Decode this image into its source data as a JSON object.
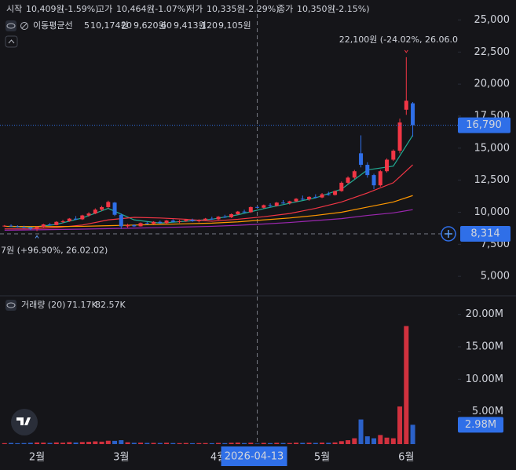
{
  "header": {
    "ohlc": [
      {
        "label": "시작",
        "value": "10,409원",
        "change": "(-1.59%)"
      },
      {
        "label": "고가",
        "value": "10,464원",
        "change": "(-1.07%)"
      },
      {
        "label": "저가",
        "value": "10,335원",
        "change": "(-2.29%)"
      },
      {
        "label": "종가",
        "value": "10,350원",
        "change": "(-2.15%)"
      }
    ]
  },
  "chart_data": [
    {
      "type": "candlestick",
      "series_title": "이동평균선",
      "categories": [
        null,
        null,
        null,
        null,
        null,
        "2월",
        null,
        null,
        null,
        null,
        null,
        null,
        null,
        null,
        null,
        null,
        null,
        null,
        "3월",
        null,
        null,
        null,
        null,
        null,
        null,
        null,
        null,
        null,
        null,
        null,
        null,
        null,
        null,
        "4월",
        null,
        null,
        null,
        null,
        null,
        null,
        null,
        null,
        null,
        null,
        null,
        null,
        null,
        null,
        null,
        "5월",
        null,
        null,
        null,
        null,
        null,
        null,
        null,
        null,
        null,
        null,
        null,
        null,
        "6월",
        null
      ],
      "open": [
        8900,
        8950,
        8900,
        8850,
        8800,
        8700,
        8850,
        9050,
        9000,
        9250,
        9300,
        9500,
        9450,
        9750,
        9900,
        10200,
        10400,
        10750,
        9800,
        8900,
        9000,
        8900,
        9150,
        9100,
        9250,
        9150,
        9350,
        9250,
        9300,
        9400,
        9300,
        9400,
        9500,
        9450,
        9650,
        9600,
        9850,
        10050,
        10000,
        10409,
        10350,
        10550,
        10500,
        10750,
        10700,
        10850,
        11050,
        11000,
        11200,
        11150,
        11400,
        11350,
        11650,
        12300,
        12700,
        14600,
        13700,
        12900,
        12100,
        13200,
        14100,
        14800,
        18000,
        18500
      ],
      "high": [
        9000,
        9050,
        8980,
        8950,
        8850,
        8900,
        9100,
        9150,
        9300,
        9400,
        9550,
        9700,
        9800,
        10000,
        10300,
        10500,
        10900,
        10800,
        9900,
        9100,
        9050,
        9200,
        9250,
        9300,
        9350,
        9400,
        9450,
        9400,
        9450,
        9500,
        9450,
        9550,
        9650,
        9700,
        9800,
        9900,
        10100,
        10200,
        10450,
        10464,
        10600,
        10700,
        10800,
        10950,
        10900,
        11100,
        11300,
        11250,
        11400,
        11500,
        11600,
        11700,
        12400,
        12800,
        13300,
        16000,
        13900,
        13000,
        13300,
        14200,
        14900,
        17300,
        22100,
        18600
      ],
      "low": [
        8850,
        8880,
        8800,
        8750,
        8600,
        8527,
        8800,
        8950,
        8980,
        9150,
        9250,
        9400,
        9400,
        9650,
        9850,
        10100,
        10300,
        9700,
        8700,
        8800,
        8850,
        8880,
        9050,
        9050,
        9100,
        9100,
        9200,
        9150,
        9250,
        9250,
        9200,
        9350,
        9400,
        9400,
        9550,
        9550,
        9800,
        9950,
        9950,
        10335,
        10300,
        10400,
        10450,
        10650,
        10600,
        10800,
        10950,
        10900,
        11100,
        11100,
        11300,
        11300,
        11600,
        12200,
        12600,
        13500,
        12700,
        11800,
        12000,
        13100,
        14000,
        14600,
        17600,
        15900
      ],
      "close": [
        8950,
        8900,
        8850,
        8800,
        8700,
        8850,
        9050,
        9000,
        9250,
        9300,
        9500,
        9450,
        9750,
        9900,
        10200,
        10400,
        10800,
        9800,
        8900,
        9000,
        8900,
        9150,
        9100,
        9250,
        9150,
        9350,
        9250,
        9300,
        9400,
        9300,
        9400,
        9500,
        9450,
        9650,
        9600,
        9850,
        10050,
        10000,
        10400,
        10350,
        10550,
        10500,
        10750,
        10700,
        10850,
        11050,
        11000,
        11200,
        11150,
        11400,
        11350,
        11650,
        12300,
        12700,
        13200,
        13700,
        12900,
        12100,
        13200,
        14100,
        14800,
        17000,
        18700,
        16790
      ],
      "close_value_labels": [
        null,
        null,
        null,
        null,
        null,
        null,
        null,
        null,
        null,
        null,
        null,
        null,
        null,
        null,
        null,
        null,
        null,
        null,
        null,
        null,
        null,
        null,
        null,
        null,
        null,
        null,
        null,
        null,
        null,
        null,
        null,
        null,
        null,
        null,
        null,
        null,
        null,
        null,
        null,
        null,
        null,
        null,
        null,
        null,
        null,
        null,
        null,
        null,
        null,
        null,
        null,
        null,
        null,
        null,
        null,
        null,
        null,
        null,
        null,
        null,
        null,
        null,
        null,
        "16,790"
      ],
      "up_color": "#f23645",
      "down_color": "#2f6fe8",
      "series": [
        {
          "name": "5",
          "color": "#22ab94",
          "legend_value": "10,174원",
          "x": [
            0,
            4,
            8,
            12,
            16,
            20,
            24,
            28,
            32,
            36,
            40,
            44,
            48,
            52,
            56,
            60,
            63
          ],
          "values": [
            8900,
            8820,
            9050,
            9550,
            10300,
            9400,
            9150,
            9300,
            9450,
            9800,
            10280,
            10700,
            11120,
            11800,
            13300,
            13600,
            16000
          ]
        },
        {
          "name": "20",
          "color": "#f23645",
          "legend_value": "9,620원",
          "x": [
            0,
            4,
            8,
            12,
            16,
            20,
            24,
            28,
            32,
            36,
            40,
            44,
            48,
            52,
            56,
            60,
            63
          ],
          "values": [
            8700,
            8700,
            8800,
            9000,
            9400,
            9600,
            9550,
            9450,
            9300,
            9450,
            9650,
            9900,
            10300,
            10800,
            11500,
            12300,
            13700
          ]
        },
        {
          "name": "60",
          "color": "#ff9800",
          "legend_value": "9,413원",
          "x": [
            0,
            4,
            8,
            12,
            16,
            20,
            24,
            28,
            32,
            36,
            40,
            44,
            48,
            52,
            56,
            60,
            63
          ],
          "values": [
            8900,
            8880,
            8880,
            8900,
            8950,
            9000,
            9050,
            9100,
            9150,
            9250,
            9400,
            9550,
            9750,
            10000,
            10400,
            10800,
            11300
          ]
        },
        {
          "name": "120",
          "color": "#9c27b0",
          "legend_value": "9,105원",
          "x": [
            0,
            4,
            8,
            12,
            16,
            20,
            24,
            28,
            32,
            36,
            40,
            44,
            48,
            52,
            56,
            60,
            63
          ],
          "values": [
            8600,
            8620,
            8650,
            8680,
            8720,
            8760,
            8800,
            8850,
            8900,
            8980,
            9080,
            9200,
            9350,
            9500,
            9750,
            9950,
            10200
          ]
        }
      ],
      "annotations": [
        {
          "text": "22,100원 (-24.02%, 26.06.0",
          "index": 62,
          "at": "high"
        },
        {
          "text": "7원 (+96.90%, 26.02.02)",
          "index": 5,
          "at": "low"
        }
      ],
      "crosshair": {
        "index": 39,
        "date": "2026-04-13",
        "price": {
          "value": 8314,
          "label": "8,314"
        }
      },
      "ylim": [
        3600,
        26500
      ],
      "yticks": [
        {
          "value": 5000,
          "label": "5,000"
        },
        {
          "value": 7500,
          "label": "7,500"
        },
        {
          "value": 10000,
          "label": "10,000"
        },
        {
          "value": 12500,
          "label": "12,500"
        },
        {
          "value": 15000,
          "label": "15,000"
        },
        {
          "value": 17500,
          "label": "17,500"
        },
        {
          "value": 20000,
          "label": "20,000"
        },
        {
          "value": 22500,
          "label": "22,500"
        },
        {
          "value": 25000,
          "label": "25,000"
        }
      ]
    },
    {
      "type": "bar",
      "title": "거래량 (20)",
      "legend_values": [
        "71.17K",
        "82.57K"
      ],
      "values": [
        150000,
        180000,
        140000,
        160000,
        200000,
        250000,
        230000,
        180000,
        260000,
        220000,
        300000,
        240000,
        320000,
        350000,
        420000,
        380000,
        520000,
        500000,
        600000,
        280000,
        200000,
        220000,
        180000,
        190000,
        170000,
        210000,
        160000,
        150000,
        170000,
        140000,
        150000,
        160000,
        140000,
        180000,
        150000,
        200000,
        230000,
        160000,
        210000,
        71170,
        190000,
        150000,
        200000,
        170000,
        160000,
        220000,
        190000,
        210000,
        180000,
        230000,
        200000,
        260000,
        450000,
        600000,
        900000,
        3800000,
        1200000,
        900000,
        1400000,
        1000000,
        900000,
        5800000,
        18200000,
        2980000
      ],
      "value_labels": [
        null,
        null,
        null,
        null,
        null,
        null,
        null,
        null,
        null,
        null,
        null,
        null,
        null,
        null,
        null,
        null,
        null,
        null,
        null,
        null,
        null,
        null,
        null,
        null,
        null,
        null,
        null,
        null,
        null,
        null,
        null,
        null,
        null,
        null,
        null,
        null,
        null,
        null,
        null,
        null,
        null,
        null,
        null,
        null,
        null,
        null,
        null,
        null,
        null,
        null,
        null,
        null,
        null,
        null,
        null,
        null,
        null,
        null,
        null,
        null,
        null,
        null,
        null,
        "2.98M"
      ],
      "ylim": [
        0,
        22500000
      ],
      "yticks": [
        {
          "value": 5000000,
          "label": "5.00M"
        },
        {
          "value": 10000000,
          "label": "10.00M"
        },
        {
          "value": 15000000,
          "label": "15.00M"
        },
        {
          "value": 20000000,
          "label": "20.00M"
        }
      ]
    }
  ]
}
